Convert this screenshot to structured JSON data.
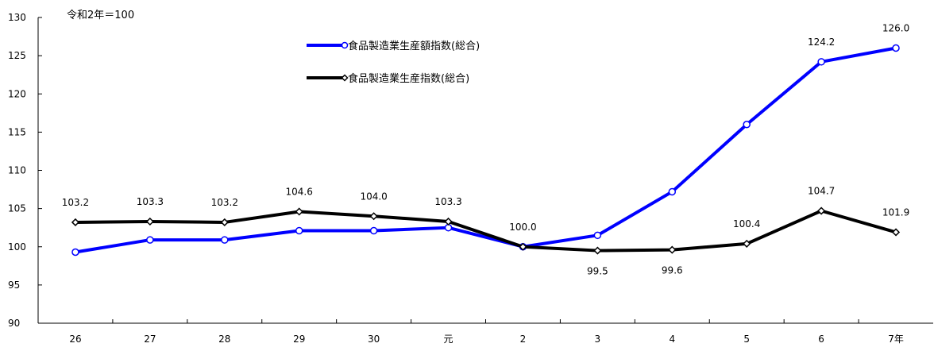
{
  "chart_data": {
    "type": "line",
    "unit_note": "令和2年＝100",
    "categories": [
      "26",
      "27",
      "28",
      "29",
      "30",
      "元",
      "2",
      "3",
      "4",
      "5",
      "6",
      "7年"
    ],
    "ylim": [
      90,
      130
    ],
    "yticks": [
      90,
      95,
      100,
      105,
      110,
      115,
      120,
      125,
      130
    ],
    "grid": false,
    "legend_position": "top-center",
    "series": [
      {
        "name": "食品製造業生産額指数(総合)",
        "color": "#0000ff",
        "marker": "circle-open",
        "values": [
          99.3,
          100.9,
          100.9,
          102.1,
          102.1,
          102.5,
          100.0,
          101.5,
          107.2,
          116.0,
          124.2,
          126.0
        ],
        "data_labels": [
          null,
          null,
          null,
          null,
          null,
          null,
          null,
          null,
          null,
          null,
          "124.2",
          "126.0"
        ]
      },
      {
        "name": "食品製造業生産指数(総合)",
        "color": "#000000",
        "marker": "diamond-open",
        "values": [
          103.2,
          103.3,
          103.2,
          104.6,
          104.0,
          103.3,
          100.0,
          99.5,
          99.6,
          100.4,
          104.7,
          101.9
        ],
        "data_labels": [
          "103.2",
          "103.3",
          "103.2",
          "104.6",
          "104.0",
          "103.3",
          "100.0",
          "99.5",
          "99.6",
          "100.4",
          "104.7",
          "101.9"
        ]
      }
    ]
  }
}
